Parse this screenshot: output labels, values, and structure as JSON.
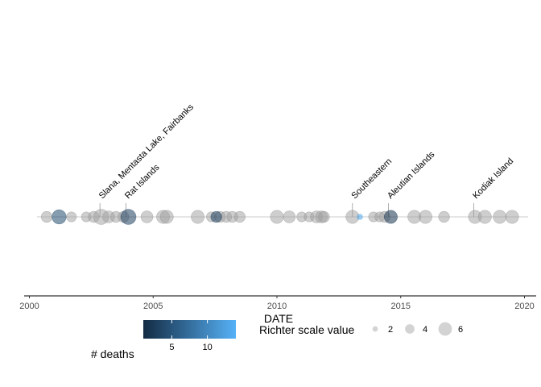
{
  "chart_data": {
    "type": "scatter",
    "xlabel": "DATE",
    "x_ticks": [
      "2000",
      "2005",
      "2010",
      "2015",
      "2020"
    ],
    "xlim": [
      2000.0,
      2020.5
    ],
    "legend_position": "bottom",
    "colors": {
      "timeline": "#cccccc",
      "point_default": "#9e9e9e",
      "deaths_low": "#132b43",
      "deaths_high": "#56b1f7",
      "axis": "#000000"
    },
    "points": [
      {
        "date": 2000.7,
        "richter": 4.5
      },
      {
        "date": 2001.2,
        "richter": 6.0,
        "deaths": 4
      },
      {
        "date": 2001.7,
        "richter": 4.0
      },
      {
        "date": 2002.3,
        "richter": 4.0
      },
      {
        "date": 2002.6,
        "richter": 4.5
      },
      {
        "date": 2002.9,
        "richter": 6.5
      },
      {
        "date": 2003.2,
        "richter": 5.0
      },
      {
        "date": 2003.5,
        "richter": 4.5
      },
      {
        "date": 2003.8,
        "richter": 4.5
      },
      {
        "date": 2004.0,
        "richter": 6.5,
        "deaths": 3
      },
      {
        "date": 2004.75,
        "richter": 5.0
      },
      {
        "date": 2005.4,
        "richter": 5.5
      },
      {
        "date": 2005.55,
        "richter": 5.5
      },
      {
        "date": 2006.8,
        "richter": 5.5
      },
      {
        "date": 2007.35,
        "richter": 4.0
      },
      {
        "date": 2007.55,
        "richter": 4.5,
        "deaths": 3
      },
      {
        "date": 2007.7,
        "richter": 4.5
      },
      {
        "date": 2007.95,
        "richter": 4.5
      },
      {
        "date": 2008.2,
        "richter": 4.5
      },
      {
        "date": 2008.5,
        "richter": 4.5
      },
      {
        "date": 2010.0,
        "richter": 5.5
      },
      {
        "date": 2010.5,
        "richter": 5.0
      },
      {
        "date": 2011.0,
        "richter": 4.0
      },
      {
        "date": 2011.3,
        "richter": 4.0
      },
      {
        "date": 2011.6,
        "richter": 5.0
      },
      {
        "date": 2011.8,
        "richter": 5.0
      },
      {
        "date": 2011.9,
        "richter": 4.5
      },
      {
        "date": 2013.05,
        "richter": 5.5
      },
      {
        "date": 2013.35,
        "richter": 2.0,
        "deaths": 13
      },
      {
        "date": 2013.9,
        "richter": 4.0
      },
      {
        "date": 2014.15,
        "richter": 4.0
      },
      {
        "date": 2014.35,
        "richter": 4.5
      },
      {
        "date": 2014.6,
        "richter": 5.5,
        "deaths": 2
      },
      {
        "date": 2015.55,
        "richter": 5.5
      },
      {
        "date": 2016.0,
        "richter": 5.5
      },
      {
        "date": 2016.75,
        "richter": 4.5
      },
      {
        "date": 2018.0,
        "richter": 5.5
      },
      {
        "date": 2018.4,
        "richter": 5.5
      },
      {
        "date": 2019.0,
        "richter": 5.5
      },
      {
        "date": 2019.5,
        "richter": 5.5
      }
    ],
    "annotations": [
      {
        "date": 2002.85,
        "label": "Slana, Mentasta Lake, Fairbanks"
      },
      {
        "date": 2003.9,
        "label": "Rat Islands"
      },
      {
        "date": 2013.05,
        "label": "Southeastern"
      },
      {
        "date": 2014.5,
        "label": "Aleutian Islands"
      },
      {
        "date": 2017.95,
        "label": "Kodiak Island"
      }
    ],
    "legend": {
      "color_title": "# deaths",
      "color_ticks": [
        5,
        10
      ],
      "color_range": [
        1,
        14
      ],
      "size_title": "Richter scale value",
      "size_ticks": [
        2,
        4,
        6
      ],
      "richter_range": [
        2,
        6.5
      ]
    }
  }
}
